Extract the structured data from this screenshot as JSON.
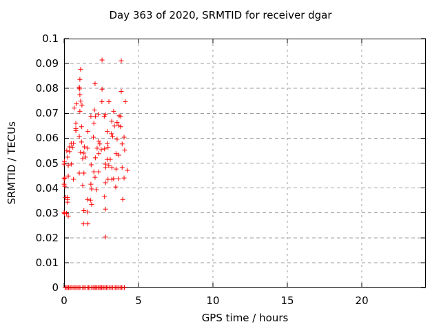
{
  "chart_data": {
    "type": "scatter",
    "title": "Day 363 of 2020, SRMTID for receiver dgar",
    "xlabel": "GPS time / hours",
    "ylabel": "SRMTID / TECUs",
    "xlim": [
      0,
      24.3
    ],
    "ylim": [
      0,
      0.1
    ],
    "grid": true,
    "legend_position": "none",
    "marker": "plus",
    "marker_color": "#ff0000",
    "grid_color": "#9e9e9e",
    "axis_color": "#000000",
    "xticks": {
      "values": [
        0,
        5,
        10,
        15,
        20
      ],
      "labels": [
        "0",
        "5",
        "10",
        "15",
        "20"
      ]
    },
    "yticks": {
      "values": [
        0,
        0.01,
        0.02,
        0.03,
        0.04,
        0.05,
        0.06,
        0.07,
        0.08,
        0.09,
        0.1
      ],
      "labels": [
        "0",
        "0.01",
        "0.02",
        "0.03",
        "0.04",
        "0.05",
        "0.06",
        "0.07",
        "0.08",
        "0.09",
        "0.1"
      ]
    },
    "series": [
      {
        "name": "SRMTID",
        "points": [
          [
            2.55,
            0.0914
          ],
          [
            3.84,
            0.0911
          ],
          [
            1.11,
            0.0877
          ],
          [
            1.06,
            0.0836
          ],
          [
            2.08,
            0.0819
          ],
          [
            1.02,
            0.0805
          ],
          [
            1.05,
            0.0798
          ],
          [
            2.55,
            0.0797
          ],
          [
            3.84,
            0.0788
          ],
          [
            1.06,
            0.0774
          ],
          [
            1.11,
            0.0749
          ],
          [
            2.54,
            0.0747
          ],
          [
            3.01,
            0.0747
          ],
          [
            4.11,
            0.0747
          ],
          [
            0.83,
            0.0738
          ],
          [
            1.2,
            0.0733
          ],
          [
            0.68,
            0.0721
          ],
          [
            2.04,
            0.0713
          ],
          [
            1.06,
            0.0708
          ],
          [
            3.33,
            0.0708
          ],
          [
            2.3,
            0.0696
          ],
          [
            2.78,
            0.0694
          ],
          [
            3.7,
            0.069
          ],
          [
            1.8,
            0.0688
          ],
          [
            2.1,
            0.0688
          ],
          [
            2.7,
            0.0688
          ],
          [
            3.8,
            0.0688
          ],
          [
            3.2,
            0.0668
          ],
          [
            3.56,
            0.0663
          ],
          [
            2.0,
            0.066
          ],
          [
            0.79,
            0.066
          ],
          [
            3.68,
            0.0652
          ],
          [
            3.38,
            0.0649
          ],
          [
            3.8,
            0.0646
          ],
          [
            1.17,
            0.0646
          ],
          [
            0.79,
            0.0638
          ],
          [
            0.79,
            0.063
          ],
          [
            1.6,
            0.0627
          ],
          [
            2.9,
            0.0627
          ],
          [
            3.18,
            0.0618
          ],
          [
            3.26,
            0.0607
          ],
          [
            1.02,
            0.0607
          ],
          [
            1.97,
            0.0604
          ],
          [
            4.03,
            0.0604
          ],
          [
            3.56,
            0.0596
          ],
          [
            1.17,
            0.0585
          ],
          [
            2.33,
            0.0588
          ],
          [
            0.48,
            0.0579
          ],
          [
            0.63,
            0.0579
          ],
          [
            2.9,
            0.0579
          ],
          [
            2.4,
            0.0577
          ],
          [
            3.9,
            0.0577
          ],
          [
            0.37,
            0.0565
          ],
          [
            1.36,
            0.0565
          ],
          [
            0.56,
            0.0563
          ],
          [
            2.95,
            0.0563
          ],
          [
            1.57,
            0.056
          ],
          [
            2.22,
            0.056
          ],
          [
            2.72,
            0.0557
          ],
          [
            2.5,
            0.0554
          ],
          [
            4.07,
            0.0552
          ],
          [
            0.18,
            0.0549
          ],
          [
            0.37,
            0.0546
          ],
          [
            1.1,
            0.0543
          ],
          [
            1.33,
            0.054
          ],
          [
            2.33,
            0.0538
          ],
          [
            3.49,
            0.0538
          ],
          [
            3.68,
            0.0532
          ],
          [
            0.25,
            0.0524
          ],
          [
            1.44,
            0.0524
          ],
          [
            2.1,
            0.0521
          ],
          [
            1.25,
            0.0518
          ],
          [
            2.9,
            0.0515
          ],
          [
            3.1,
            0.0515
          ],
          [
            0.02,
            0.0507
          ],
          [
            0.0,
            0.0496
          ],
          [
            0.48,
            0.0496
          ],
          [
            2.79,
            0.0496
          ],
          [
            1.82,
            0.0493
          ],
          [
            0.28,
            0.049
          ],
          [
            3.0,
            0.049
          ],
          [
            3.21,
            0.0482
          ],
          [
            2.79,
            0.0482
          ],
          [
            3.9,
            0.0482
          ],
          [
            3.49,
            0.0476
          ],
          [
            4.26,
            0.0471
          ],
          [
            2.0,
            0.0465
          ],
          [
            2.33,
            0.0465
          ],
          [
            1.02,
            0.046
          ],
          [
            1.33,
            0.046
          ],
          [
            0.28,
            0.0448
          ],
          [
            2.08,
            0.0443
          ],
          [
            4.03,
            0.044
          ],
          [
            0.05,
            0.044
          ],
          [
            0.0,
            0.0437
          ],
          [
            3.33,
            0.0437
          ],
          [
            3.66,
            0.0437
          ],
          [
            0.63,
            0.0435
          ],
          [
            2.95,
            0.0435
          ],
          [
            3.21,
            0.0435
          ],
          [
            2.78,
            0.0421
          ],
          [
            1.8,
            0.0415
          ],
          [
            0.0,
            0.0415
          ],
          [
            1.25,
            0.041
          ],
          [
            0.05,
            0.0407
          ],
          [
            3.47,
            0.0404
          ],
          [
            1.85,
            0.0396
          ],
          [
            2.18,
            0.0393
          ],
          [
            2.72,
            0.0365
          ],
          [
            0.23,
            0.0362
          ],
          [
            0.1,
            0.0362
          ],
          [
            0.23,
            0.0354
          ],
          [
            1.57,
            0.0354
          ],
          [
            3.94,
            0.0354
          ],
          [
            1.77,
            0.0351
          ],
          [
            0.23,
            0.0343
          ],
          [
            1.85,
            0.0334
          ],
          [
            2.78,
            0.0315
          ],
          [
            1.33,
            0.0309
          ],
          [
            1.57,
            0.0304
          ],
          [
            0.0,
            0.0301
          ],
          [
            0.02,
            0.0298
          ],
          [
            0.17,
            0.0298
          ],
          [
            0.28,
            0.0287
          ],
          [
            1.3,
            0.0256
          ],
          [
            1.6,
            0.0256
          ],
          [
            2.78,
            0.0203
          ],
          [
            0.07,
            0
          ],
          [
            0.14,
            0
          ],
          [
            0.22,
            0
          ],
          [
            0.3,
            0
          ],
          [
            0.38,
            0
          ],
          [
            0.46,
            0
          ],
          [
            0.55,
            0
          ],
          [
            0.65,
            0
          ],
          [
            0.74,
            0
          ],
          [
            0.83,
            0
          ],
          [
            0.93,
            0
          ],
          [
            1.02,
            0
          ],
          [
            1.12,
            0
          ],
          [
            1.25,
            0
          ],
          [
            1.34,
            0
          ],
          [
            1.43,
            0
          ],
          [
            1.55,
            0
          ],
          [
            1.65,
            0
          ],
          [
            1.74,
            0
          ],
          [
            1.85,
            0
          ],
          [
            1.95,
            0
          ],
          [
            2.04,
            0
          ],
          [
            2.12,
            0
          ],
          [
            2.2,
            0
          ],
          [
            2.28,
            0
          ],
          [
            2.36,
            0
          ],
          [
            2.44,
            0
          ],
          [
            2.52,
            0
          ],
          [
            2.6,
            0
          ],
          [
            2.68,
            0
          ],
          [
            2.76,
            0
          ],
          [
            2.85,
            0
          ],
          [
            2.95,
            0
          ],
          [
            3.05,
            0
          ],
          [
            3.15,
            0
          ],
          [
            3.26,
            0
          ],
          [
            3.36,
            0
          ],
          [
            3.46,
            0
          ],
          [
            3.56,
            0
          ],
          [
            3.66,
            0
          ],
          [
            3.76,
            0
          ],
          [
            3.86,
            0
          ],
          [
            3.95,
            0
          ],
          [
            4.05,
            0
          ]
        ]
      }
    ]
  }
}
